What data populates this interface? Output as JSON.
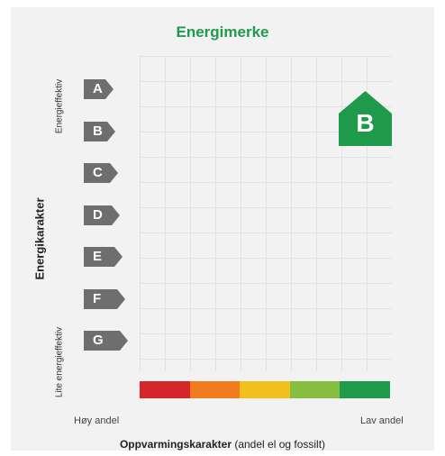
{
  "title": "Energimerke",
  "y_axis": {
    "label": "Energikarakter",
    "top_label": "Energieffektiv",
    "bottom_label": "Lite energieffektiv"
  },
  "energy_grades": [
    "A",
    "B",
    "C",
    "D",
    "E",
    "F",
    "G"
  ],
  "heating_scale": {
    "colors": [
      "#d4262b",
      "#f07b1f",
      "#f2c01e",
      "#86bf40",
      "#1e9a4a"
    ],
    "left_label": "Høy andel",
    "right_label": "Lav andel"
  },
  "x_axis": {
    "label_bold": "Oppvarmingskarakter",
    "label_normal": " (andel el og fossilt)"
  },
  "result": {
    "grade": "B",
    "badge_color": "#1e9a4a"
  }
}
